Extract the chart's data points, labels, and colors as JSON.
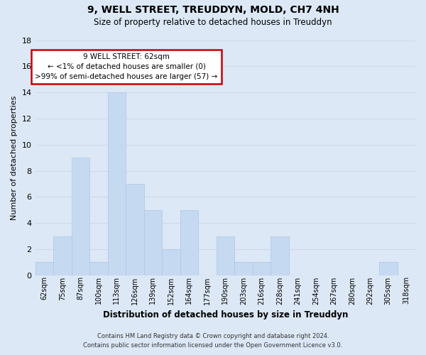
{
  "title": "9, WELL STREET, TREUDDYN, MOLD, CH7 4NH",
  "subtitle": "Size of property relative to detached houses in Treuddyn",
  "xlabel": "Distribution of detached houses by size in Treuddyn",
  "ylabel": "Number of detached properties",
  "bin_labels": [
    "62sqm",
    "75sqm",
    "87sqm",
    "100sqm",
    "113sqm",
    "126sqm",
    "139sqm",
    "152sqm",
    "164sqm",
    "177sqm",
    "190sqm",
    "203sqm",
    "216sqm",
    "228sqm",
    "241sqm",
    "254sqm",
    "267sqm",
    "280sqm",
    "292sqm",
    "305sqm",
    "318sqm"
  ],
  "bar_heights": [
    1,
    3,
    9,
    1,
    14,
    7,
    5,
    2,
    5,
    0,
    3,
    1,
    1,
    3,
    0,
    0,
    0,
    0,
    0,
    1,
    0
  ],
  "bar_color": "#c5d9f1",
  "bar_edge_color": "#aec6e8",
  "annotation_title": "9 WELL STREET: 62sqm",
  "annotation_line1": "← <1% of detached houses are smaller (0)",
  "annotation_line2": ">99% of semi-detached houses are larger (57) →",
  "annotation_box_facecolor": "#ffffff",
  "annotation_box_edgecolor": "#cc0000",
  "ylim": [
    0,
    18
  ],
  "yticks": [
    0,
    2,
    4,
    6,
    8,
    10,
    12,
    14,
    16,
    18
  ],
  "grid_color": "#d0d8e8",
  "background_color": "#dce8f5",
  "footer_line1": "Contains HM Land Registry data © Crown copyright and database right 2024.",
  "footer_line2": "Contains public sector information licensed under the Open Government Licence v3.0."
}
